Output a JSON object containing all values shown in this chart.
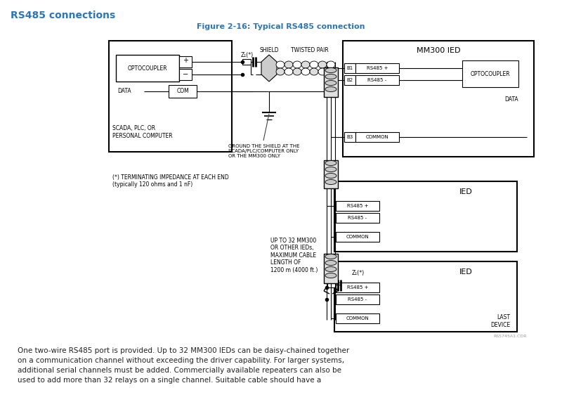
{
  "title": "RS485 connections",
  "figure_title": "Figure 2-16: Typical RS485 connection",
  "title_color": "#2E75B6",
  "figure_title_color": "#2E75B6",
  "bg_color": "#FFFFFF",
  "body_text_line1": "One two-wire RS485 port is provided. Up to 32 MM300 IEDs can be daisy-chained together",
  "body_text_line2": "on a communication channel without exceeding the driver capability. For larger systems,",
  "body_text_line3": "additional serial channels must be added. Commercially available repeaters can also be",
  "body_text_line4": "used to add more than 32 relays on a single channel. Suitable cable should have a",
  "note1": "GROUND THE SHIELD AT THE\nSCADA/PLC/COMPUTER ONLY\nOR THE MM300 ONLY",
  "note2": "(*) TERMINATING IMPEDANCE AT EACH END\n(typically 120 ohms and 1 nF)",
  "note3": "UP TO 32 MM300\nOR OTHER IEDs,\nMAXIMUM CABLE\nLENGTH OF\n1200 m (4000 ft.)",
  "watermark": "RS5745A1.CDR"
}
